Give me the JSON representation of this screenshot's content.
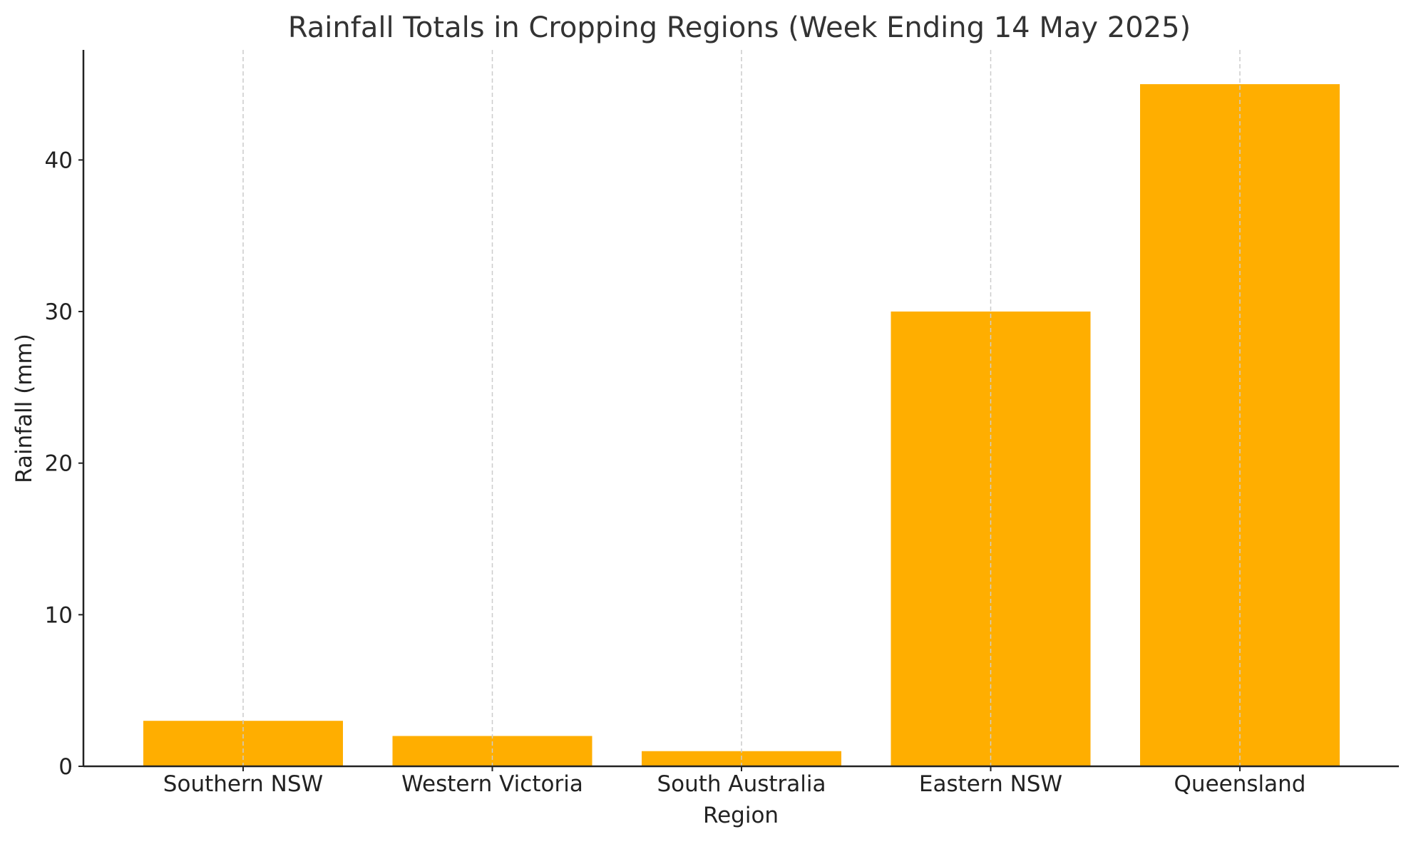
{
  "chart_data": {
    "type": "bar",
    "title": "Rainfall Totals in Cropping Regions (Week Ending 14 May 2025)",
    "xlabel": "Region",
    "ylabel": "Rainfall (mm)",
    "categories": [
      "Southern NSW",
      "Western Victoria",
      "South Australia",
      "Eastern NSW",
      "Queensland"
    ],
    "values": [
      3,
      2,
      1,
      30,
      45
    ],
    "ylim": [
      0,
      47.25
    ],
    "yticks": [
      "0",
      "10",
      "20",
      "30",
      "40"
    ],
    "bar_color": "#FFAE00",
    "grid": "vertical dashed lines at category centers",
    "grid_color": "#cccccc",
    "legend": "none"
  }
}
